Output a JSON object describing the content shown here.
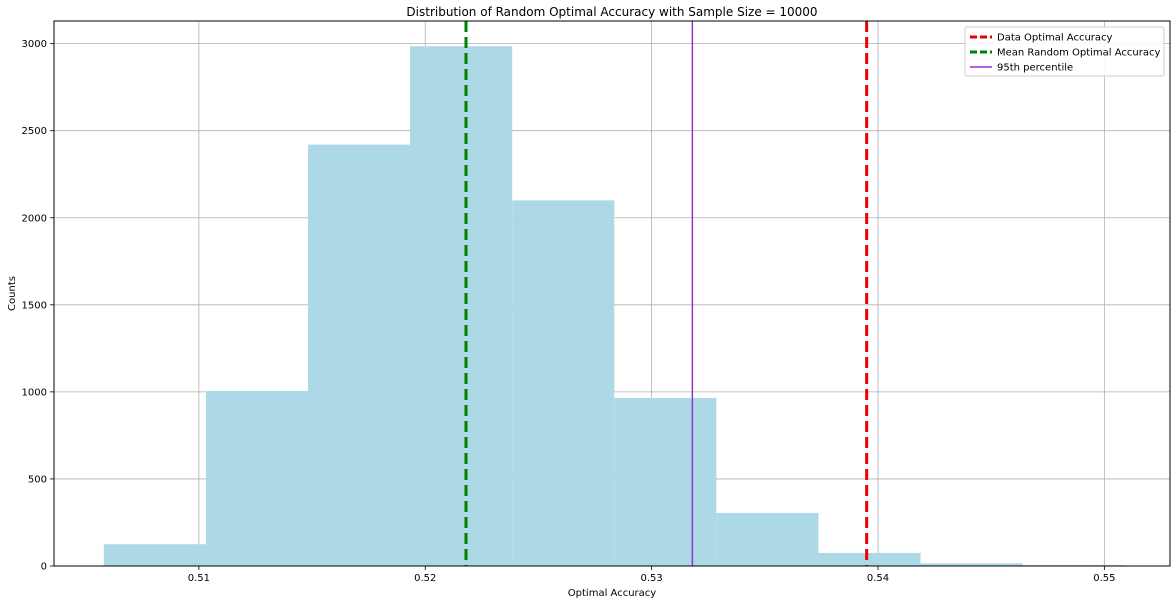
{
  "chart_data": {
    "type": "bar",
    "subtype": "histogram",
    "title": "Distribution of Random Optimal Accuracy with Sample Size =  10000",
    "xlabel": "Optimal Accuracy",
    "ylabel": "Counts",
    "xlim": [
      0.5036,
      0.5529
    ],
    "ylim": [
      0,
      3130
    ],
    "grid": true,
    "bar_color": "#add8e6",
    "xticks": [
      0.51,
      0.52,
      0.53,
      0.54,
      0.55
    ],
    "xtick_labels": [
      "0.51",
      "0.52",
      "0.53",
      "0.54",
      "0.55"
    ],
    "yticks": [
      0,
      500,
      1000,
      1500,
      2000,
      2500,
      3000
    ],
    "ytick_labels": [
      "0",
      "500",
      "1000",
      "1500",
      "2000",
      "2500",
      "3000"
    ],
    "bins": [
      0.5058,
      0.51031,
      0.51482,
      0.51933,
      0.52384,
      0.52835,
      0.53286,
      0.53737,
      0.54188,
      0.54639,
      0.5509
    ],
    "counts": [
      125,
      1005,
      2420,
      2985,
      2100,
      965,
      305,
      75,
      15,
      5
    ],
    "vlines": [
      {
        "name": "Data Optimal Accuracy",
        "x": 0.5395,
        "color": "#ee0000",
        "style": "dashed",
        "width": 3
      },
      {
        "name": "Mean Random Optimal Accuracy",
        "x": 0.5218,
        "color": "#008000",
        "style": "dashed",
        "width": 3
      },
      {
        "name": "95th percentile",
        "x": 0.5318,
        "color": "#9932cc",
        "style": "solid",
        "width": 1.5
      }
    ],
    "legend": {
      "position": "top-right",
      "entries": [
        "Data Optimal Accuracy",
        "Mean Random Optimal Accuracy",
        "95th percentile"
      ]
    }
  }
}
